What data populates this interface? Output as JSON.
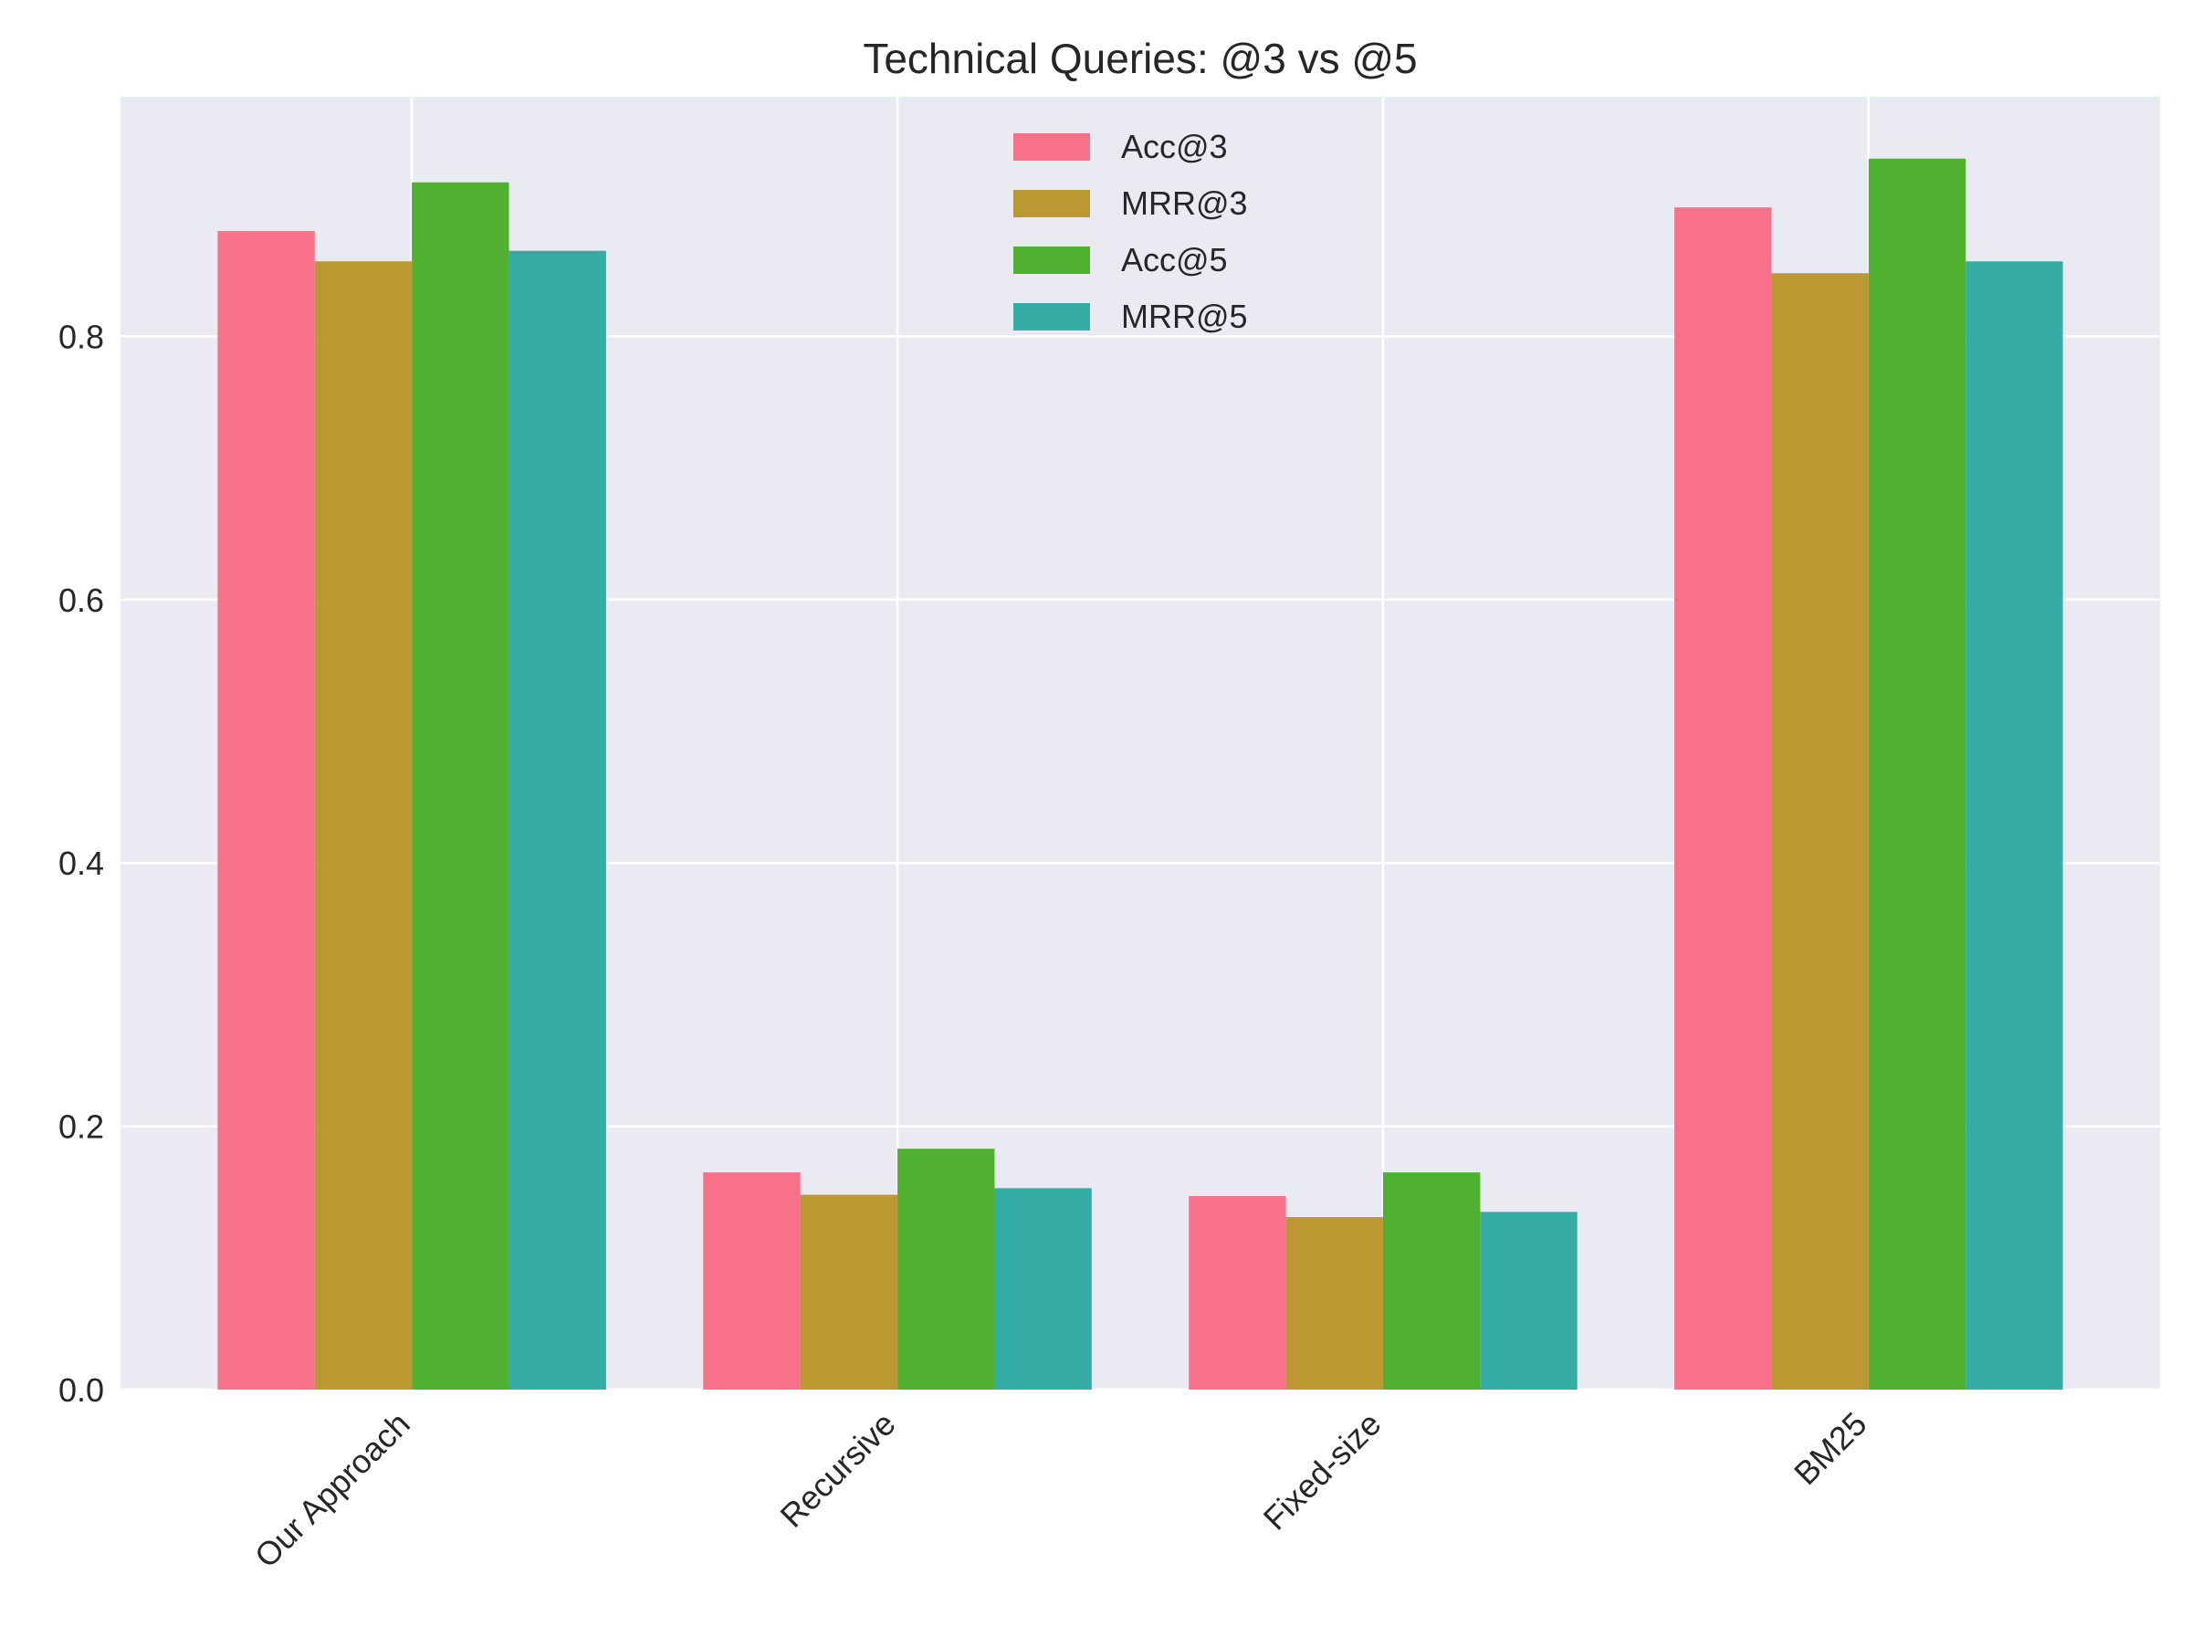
{
  "chart_data": {
    "type": "bar",
    "title": "Technical Queries: @3 vs @5",
    "xlabel": "",
    "ylabel": "",
    "categories": [
      "Our Approach",
      "Recursive",
      "Fixed-size",
      "BM25"
    ],
    "series": [
      {
        "name": "Acc@3",
        "color": "#f77189",
        "values": [
          0.88,
          0.165,
          0.147,
          0.898
        ]
      },
      {
        "name": "MRR@3",
        "color": "#bb9832",
        "values": [
          0.857,
          0.148,
          0.131,
          0.848
        ]
      },
      {
        "name": "Acc@5",
        "color": "#50b131",
        "values": [
          0.917,
          0.183,
          0.165,
          0.935
        ]
      },
      {
        "name": "MRR@5",
        "color": "#36ada4",
        "values": [
          0.865,
          0.153,
          0.135,
          0.857
        ]
      }
    ],
    "ylim": [
      0,
      0.982
    ],
    "yticks": [
      0.0,
      0.2,
      0.4,
      0.6,
      0.8
    ],
    "ytick_labels": [
      "0.0",
      "0.2",
      "0.4",
      "0.6",
      "0.8"
    ],
    "grid": true,
    "legend_position": "upper center",
    "background": "#eaeaf2",
    "grid_color": "#ffffff"
  }
}
